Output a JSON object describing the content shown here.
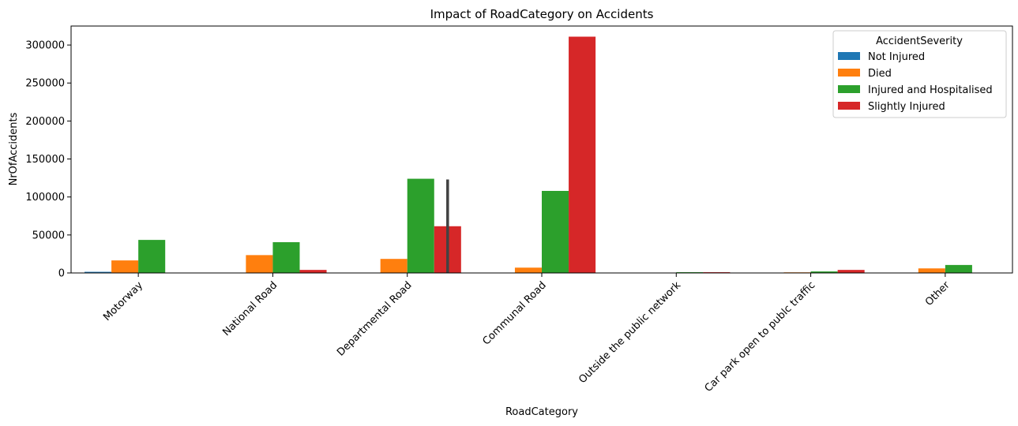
{
  "chart_data": {
    "type": "bar",
    "title": "Impact of RoadCategory on Accidents",
    "xlabel": "RoadCategory",
    "ylabel": "NrOfAccidents",
    "ylim": [
      0,
      325000
    ],
    "yticks": [
      0,
      50000,
      100000,
      150000,
      200000,
      250000,
      300000
    ],
    "categories": [
      "Motorway",
      "National Road",
      "Departmental Road",
      "Communal Road",
      "Outside the public network",
      "Car park open to publc traffic",
      "Other"
    ],
    "legend_title": "AccidentSeverity",
    "legend_position": "top-right",
    "grid": false,
    "series": [
      {
        "name": "Not Injured",
        "color": "#1f77b4",
        "values": [
          1500,
          0,
          0,
          0,
          0,
          0,
          500
        ]
      },
      {
        "name": "Died",
        "color": "#ff7f0e",
        "values": [
          16500,
          23500,
          18500,
          7000,
          0,
          800,
          6000
        ]
      },
      {
        "name": "Injured and Hospitalised",
        "color": "#2ca02c",
        "values": [
          43500,
          40500,
          124000,
          108000,
          1000,
          2000,
          10500
        ]
      },
      {
        "name": "Slightly Injured",
        "color": "#d62728",
        "values": [
          0,
          4000,
          61500,
          311000,
          1000,
          4000,
          0
        ]
      }
    ],
    "error_bars": [
      {
        "series": 3,
        "category": 2,
        "low": 0,
        "high": 123000
      }
    ]
  }
}
